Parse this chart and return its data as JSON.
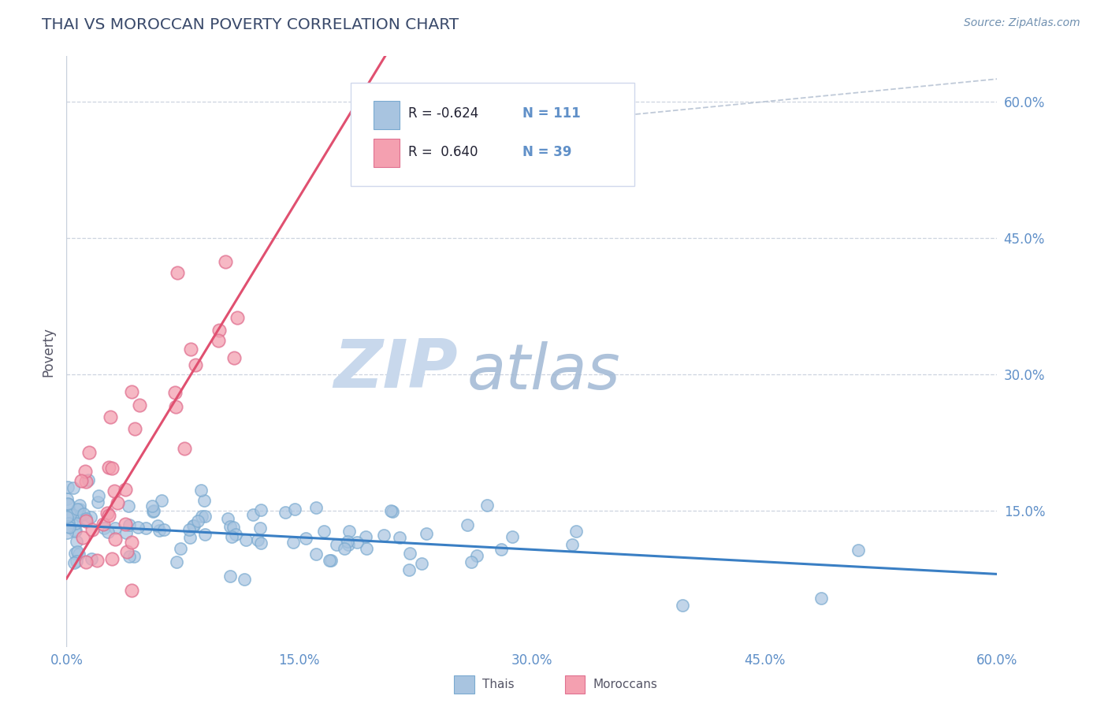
{
  "title": "THAI VS MOROCCAN POVERTY CORRELATION CHART",
  "source_text": "Source: ZipAtlas.com",
  "ylabel": "Poverty",
  "xmin": 0.0,
  "xmax": 0.6,
  "ymin": 0.0,
  "ymax": 0.65,
  "yticks": [
    0.15,
    0.3,
    0.45,
    0.6
  ],
  "ytick_labels": [
    "15.0%",
    "30.0%",
    "45.0%",
    "60.0%"
  ],
  "xticks": [
    0.0,
    0.15,
    0.3,
    0.45,
    0.6
  ],
  "xtick_labels": [
    "0.0%",
    "15.0%",
    "30.0%",
    "45.0%",
    "60.0%"
  ],
  "thai_color": "#a8c4e0",
  "thai_edge_color": "#7aaad0",
  "moroccan_color": "#f4a0b0",
  "moroccan_edge_color": "#e07090",
  "thai_line_color": "#3a7fc4",
  "moroccan_line_color": "#e05070",
  "dashed_line_color": "#b8c4d4",
  "R_thai": -0.624,
  "N_thai": 111,
  "R_moroccan": 0.64,
  "N_moroccan": 39,
  "title_color": "#3a4a6b",
  "source_color": "#7090b0",
  "watermark_zip_color": "#c8d8ec",
  "watermark_atlas_color": "#a0b8d4",
  "legend_label_thai": "Thais",
  "legend_label_moroccan": "Moroccans",
  "background_color": "#ffffff",
  "grid_color": "#c8d0dc",
  "tick_color": "#6090c8",
  "ylabel_color": "#555566"
}
